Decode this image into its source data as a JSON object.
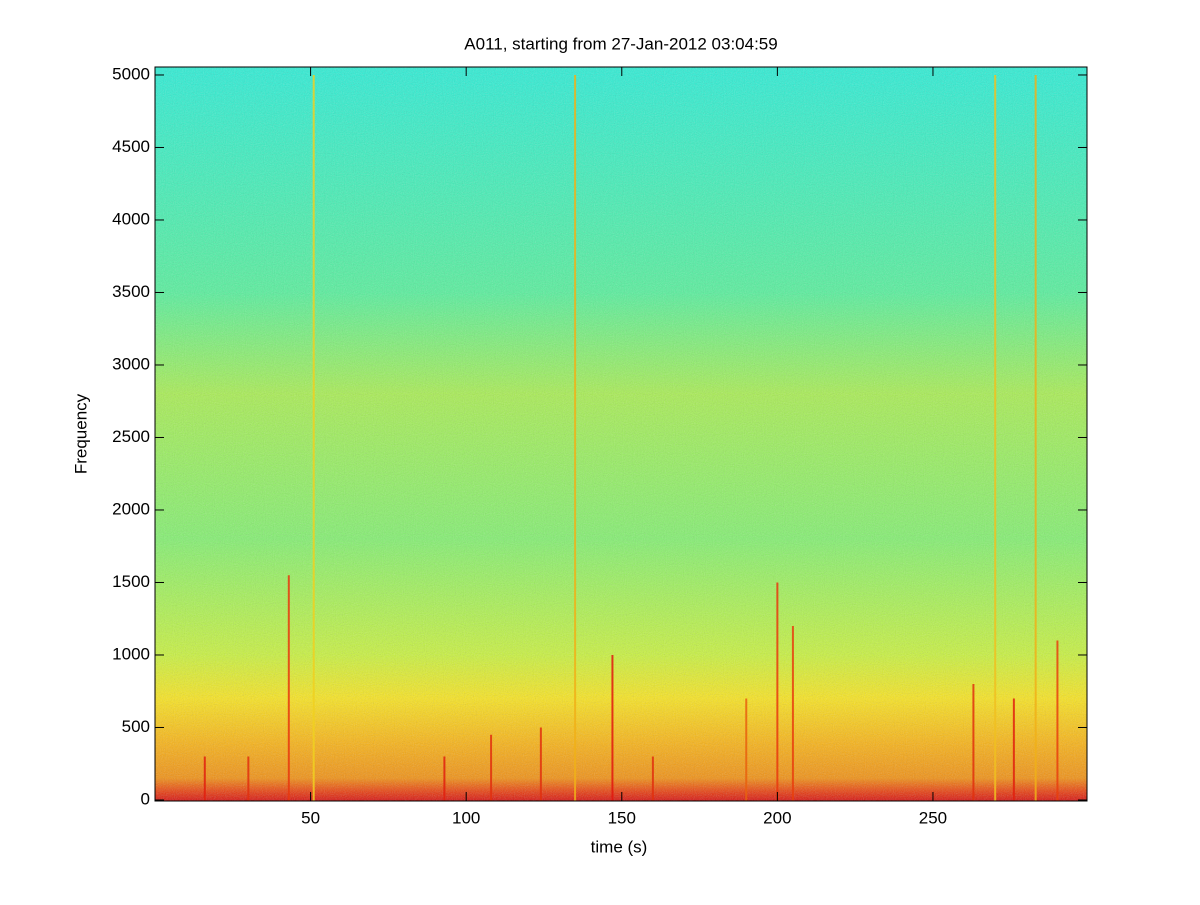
{
  "chart_data": {
    "type": "spectrogram",
    "title": "A011, starting from 27-Jan-2012 03:04:59",
    "x_label": "time (s)",
    "y_label": "Frequency",
    "xlim": [
      0,
      299.5
    ],
    "ylim": [
      -7,
      5055
    ],
    "xticks": [
      50,
      100,
      150,
      200,
      250
    ],
    "yticks": [
      0,
      500,
      1000,
      1500,
      2000,
      2500,
      3000,
      3500,
      4000,
      4500,
      5000
    ],
    "frequency_colors": [
      {
        "frequency": 0,
        "color": "#d8140e"
      },
      {
        "frequency": 60,
        "color": "#e8400e"
      },
      {
        "frequency": 150,
        "color": "#f09012"
      },
      {
        "frequency": 400,
        "color": "#f8b414"
      },
      {
        "frequency": 700,
        "color": "#f8e41e"
      },
      {
        "frequency": 1000,
        "color": "#c8f23e"
      },
      {
        "frequency": 1800,
        "color": "#82f070"
      },
      {
        "frequency": 2800,
        "color": "#a8ee52"
      },
      {
        "frequency": 3500,
        "color": "#56f09c"
      },
      {
        "frequency": 5000,
        "color": "#2ceed4"
      }
    ],
    "streaks": [
      {
        "time": 43,
        "frequency": 1550,
        "color": "#e8380e"
      },
      {
        "time": 51,
        "frequency": 5000,
        "color": "#f0d020"
      },
      {
        "time": 16,
        "frequency": 300,
        "color": "#e0200e"
      },
      {
        "time": 30,
        "frequency": 300,
        "color": "#e0300e"
      },
      {
        "time": 93,
        "frequency": 300,
        "color": "#e0200e"
      },
      {
        "time": 108,
        "frequency": 450,
        "color": "#e0300e"
      },
      {
        "time": 124,
        "frequency": 500,
        "color": "#e0300e"
      },
      {
        "time": 135,
        "frequency": 5000,
        "color": "#f0b018"
      },
      {
        "time": 147,
        "frequency": 1000,
        "color": "#e0180e"
      },
      {
        "time": 160,
        "frequency": 300,
        "color": "#e0300e"
      },
      {
        "time": 190,
        "frequency": 700,
        "color": "#e8600e"
      },
      {
        "time": 200,
        "frequency": 1500,
        "color": "#e8380e"
      },
      {
        "time": 205,
        "frequency": 1200,
        "color": "#e8400e"
      },
      {
        "time": 263,
        "frequency": 800,
        "color": "#e0300e"
      },
      {
        "time": 270,
        "frequency": 5000,
        "color": "#f0c020"
      },
      {
        "time": 276,
        "frequency": 700,
        "color": "#e0200e"
      },
      {
        "time": 283,
        "frequency": 5000,
        "color": "#f0b018"
      },
      {
        "time": 290,
        "frequency": 1100,
        "color": "#e8400e"
      }
    ]
  }
}
